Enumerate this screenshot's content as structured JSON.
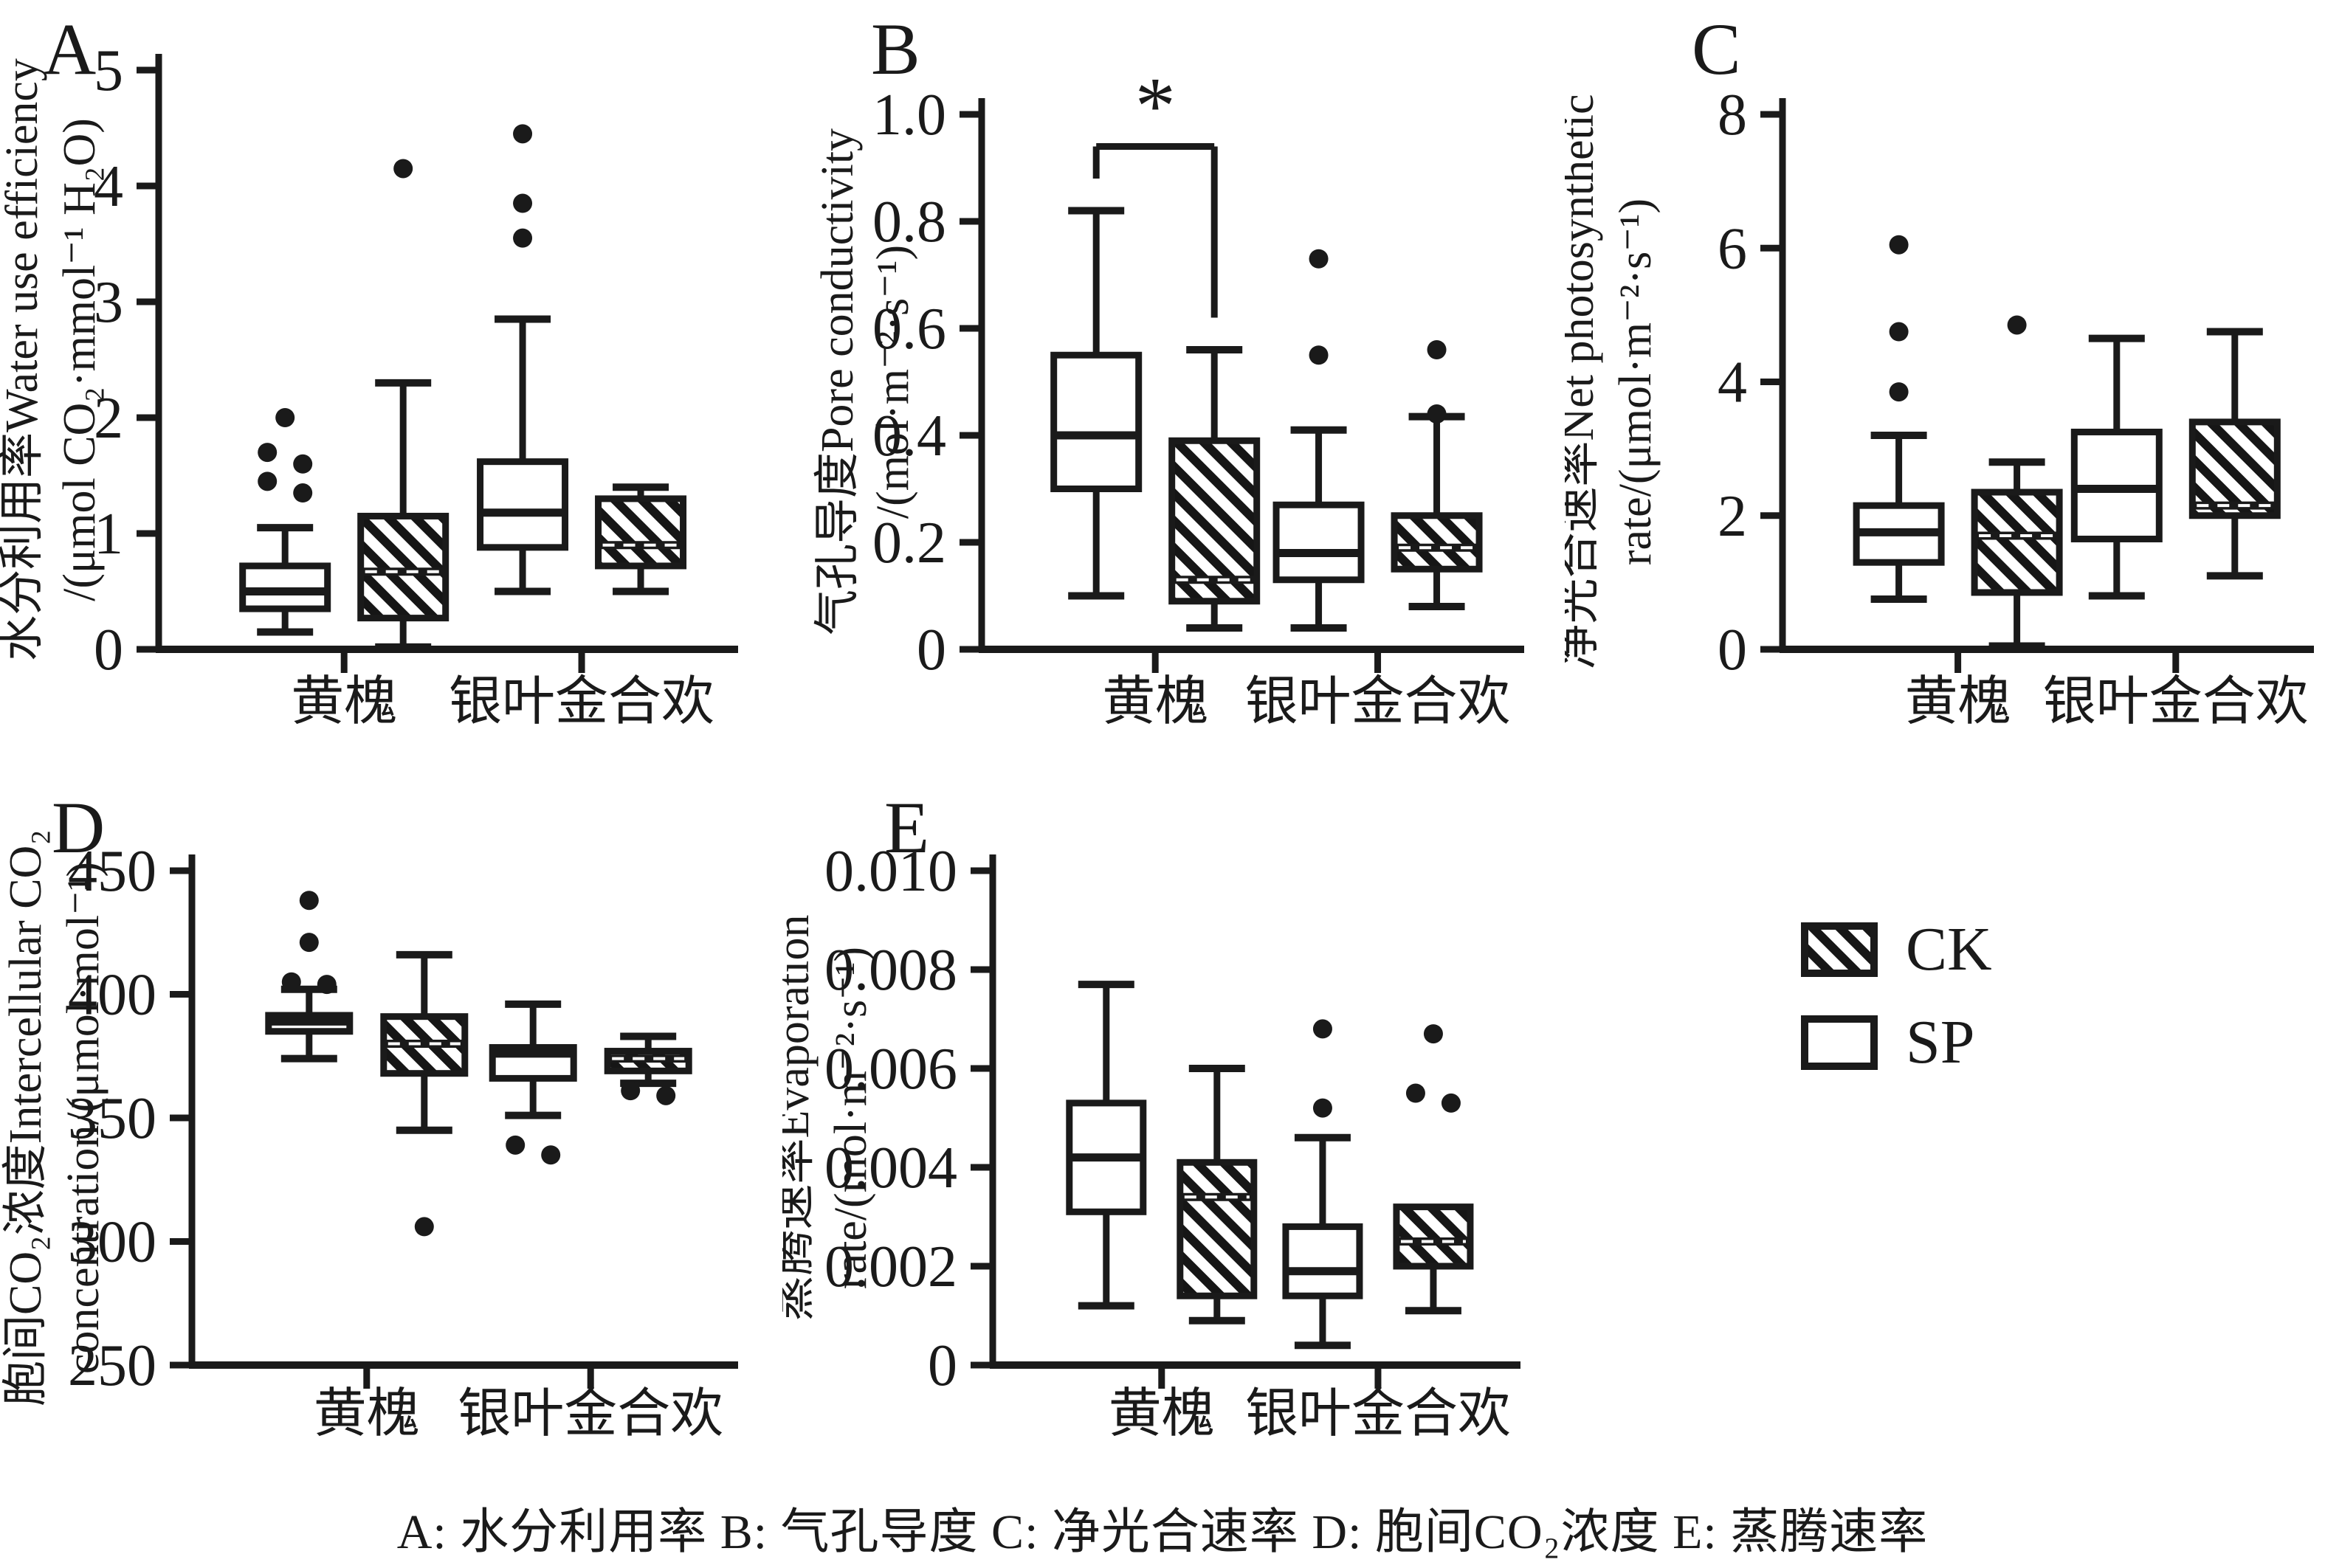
{
  "page": {
    "background": "#ffffff",
    "ink": "#1a1a1a"
  },
  "legend": {
    "items": [
      {
        "label": "CK",
        "swatch": "hatch"
      },
      {
        "label": "SP",
        "swatch": "white"
      }
    ]
  },
  "caption": "A: 水分利用率 B: 气孔导度 C: 净光合速率 D: 胞间CO₂浓度 E: 蒸腾速率",
  "chart_data": [
    {
      "panel": "A",
      "type": "box",
      "ylabel": [
        "水分利用率Water use efficiency",
        "/(μmol CO₂·mmol⁻¹ H₂O)"
      ],
      "ylim": [
        0,
        5
      ],
      "yticks": [
        {
          "v": 0,
          "t": "0"
        },
        {
          "v": 1,
          "t": "1"
        },
        {
          "v": 2,
          "t": "2"
        },
        {
          "v": 3,
          "t": "3"
        },
        {
          "v": 4,
          "t": "4"
        },
        {
          "v": 5,
          "t": "5"
        }
      ],
      "categories": [
        "黄槐",
        "银叶金合欢"
      ],
      "series_order": [
        "SP",
        "CK"
      ],
      "groups": [
        {
          "category": "黄槐",
          "boxes": [
            {
              "series": "SP",
              "style": "open",
              "stats": {
                "whisker_low": 0.15,
                "q1": 0.35,
                "median": 0.5,
                "q3": 0.72,
                "whisker_high": 1.05
              },
              "outliers": [
                1.35,
                1.45,
                1.6,
                1.7,
                2.0
              ]
            },
            {
              "series": "CK",
              "style": "hatched",
              "stats": {
                "whisker_low": 0.02,
                "q1": 0.27,
                "median": 0.67,
                "q3": 1.15,
                "whisker_high": 2.3
              },
              "outliers": [
                4.15
              ]
            }
          ]
        },
        {
          "category": "银叶金合欢",
          "boxes": [
            {
              "series": "SP",
              "style": "open",
              "stats": {
                "whisker_low": 0.5,
                "q1": 0.88,
                "median": 1.18,
                "q3": 1.62,
                "whisker_high": 2.85
              },
              "outliers": [
                3.55,
                3.85,
                4.45
              ]
            },
            {
              "series": "CK",
              "style": "hatched",
              "stats": {
                "whisker_low": 0.5,
                "q1": 0.72,
                "median": 0.9,
                "q3": 1.3,
                "whisker_high": 1.4
              },
              "outliers": []
            }
          ]
        }
      ]
    },
    {
      "panel": "B",
      "type": "box",
      "ylabel": [
        "气孔导度Pore conductivity",
        "/(mol·m⁻²·s⁻¹)"
      ],
      "ylim": [
        0,
        1.0
      ],
      "yticks": [
        {
          "v": 0,
          "t": "0"
        },
        {
          "v": 0.2,
          "t": "0.2"
        },
        {
          "v": 0.4,
          "t": "0.4"
        },
        {
          "v": 0.6,
          "t": "0.6"
        },
        {
          "v": 0.8,
          "t": "0.8"
        },
        {
          "v": 1.0,
          "t": "1.0"
        }
      ],
      "categories": [
        "黄槐",
        "银叶金合欢"
      ],
      "series_order": [
        "SP",
        "CK"
      ],
      "significance": {
        "label": "*",
        "category": "黄槐",
        "between": [
          "SP",
          "CK"
        ],
        "bar_y": 0.94,
        "drop_left_to": 0.88,
        "drop_right_to": 0.62
      },
      "groups": [
        {
          "category": "黄槐",
          "boxes": [
            {
              "series": "SP",
              "style": "open",
              "stats": {
                "whisker_low": 0.1,
                "q1": 0.3,
                "median": 0.4,
                "q3": 0.55,
                "whisker_high": 0.82
              },
              "outliers": []
            },
            {
              "series": "CK",
              "style": "hatched",
              "stats": {
                "whisker_low": 0.04,
                "q1": 0.09,
                "median": 0.13,
                "q3": 0.39,
                "whisker_high": 0.56
              },
              "outliers": []
            }
          ]
        },
        {
          "category": "银叶金合欢",
          "boxes": [
            {
              "series": "SP",
              "style": "open",
              "stats": {
                "whisker_low": 0.04,
                "q1": 0.13,
                "median": 0.18,
                "q3": 0.27,
                "whisker_high": 0.41
              },
              "outliers": [
                0.55,
                0.73
              ]
            },
            {
              "series": "CK",
              "style": "hatched",
              "stats": {
                "whisker_low": 0.08,
                "q1": 0.15,
                "median": 0.19,
                "q3": 0.25,
                "whisker_high": 0.435
              },
              "outliers": [
                0.44,
                0.56
              ]
            }
          ]
        }
      ]
    },
    {
      "panel": "C",
      "type": "box",
      "ylabel": [
        "净光合速率Net photosynthetic",
        "rate/(μmol·m⁻²·s⁻¹)"
      ],
      "ylim": [
        0,
        8
      ],
      "yticks": [
        {
          "v": 0,
          "t": "0"
        },
        {
          "v": 2,
          "t": "2"
        },
        {
          "v": 4,
          "t": "4"
        },
        {
          "v": 6,
          "t": "6"
        },
        {
          "v": 8,
          "t": "8"
        }
      ],
      "categories": [
        "黄槐",
        "银叶金合欢"
      ],
      "series_order": [
        "SP",
        "CK"
      ],
      "groups": [
        {
          "category": "黄槐",
          "boxes": [
            {
              "series": "SP",
              "style": "open",
              "stats": {
                "whisker_low": 0.75,
                "q1": 1.3,
                "median": 1.75,
                "q3": 2.15,
                "whisker_high": 3.2
              },
              "outliers": [
                3.85,
                4.75,
                6.05
              ]
            },
            {
              "series": "CK",
              "style": "hatched",
              "stats": {
                "whisker_low": 0.05,
                "q1": 0.85,
                "median": 1.7,
                "q3": 2.35,
                "whisker_high": 2.8
              },
              "outliers": [
                4.85
              ]
            }
          ]
        },
        {
          "category": "银叶金合欢",
          "boxes": [
            {
              "series": "SP",
              "style": "open",
              "stats": {
                "whisker_low": 0.8,
                "q1": 1.65,
                "median": 2.4,
                "q3": 3.25,
                "whisker_high": 4.65
              },
              "outliers": []
            },
            {
              "series": "CK",
              "style": "hatched",
              "stats": {
                "whisker_low": 1.1,
                "q1": 2.0,
                "median": 2.15,
                "q3": 3.4,
                "whisker_high": 4.75
              },
              "outliers": []
            }
          ]
        }
      ]
    },
    {
      "panel": "D",
      "type": "box",
      "ylabel": [
        "胞间CO₂浓度Intercellular CO₂",
        "concentration/(μmol·mol⁻¹)"
      ],
      "ylim": [
        250,
        450
      ],
      "yticks": [
        {
          "v": 250,
          "t": "250"
        },
        {
          "v": 300,
          "t": "300"
        },
        {
          "v": 350,
          "t": "350"
        },
        {
          "v": 400,
          "t": "400"
        },
        {
          "v": 450,
          "t": "450"
        }
      ],
      "categories": [
        "黄槐",
        "银叶金合欢"
      ],
      "series_order": [
        "SP",
        "CK"
      ],
      "groups": [
        {
          "category": "黄槐",
          "boxes": [
            {
              "series": "SP",
              "style": "open",
              "stats": {
                "whisker_low": 374,
                "q1": 385,
                "median": 389,
                "q3": 391.5,
                "whisker_high": 402
              },
              "outliers": [
                404,
                405,
                421,
                438
              ]
            },
            {
              "series": "CK",
              "style": "hatched",
              "stats": {
                "whisker_low": 345,
                "q1": 368,
                "median": 380,
                "q3": 391,
                "whisker_high": 416
              },
              "outliers": [
                306
              ]
            }
          ]
        },
        {
          "category": "银叶金合欢",
          "boxes": [
            {
              "series": "SP",
              "style": "open",
              "stats": {
                "whisker_low": 351,
                "q1": 366,
                "median": 376,
                "q3": 378.5,
                "whisker_high": 396
              },
              "outliers": [
                335,
                339
              ]
            },
            {
              "series": "CK",
              "style": "hatched",
              "stats": {
                "whisker_low": 364,
                "q1": 369,
                "median": 374,
                "q3": 377,
                "whisker_high": 383
              },
              "outliers": [
                359,
                361
              ]
            }
          ]
        }
      ]
    },
    {
      "panel": "E",
      "type": "box",
      "ylabel": [
        "蒸腾速率Evaporation",
        "rate/(mol·m⁻²·s⁻¹)"
      ],
      "ylim": [
        0,
        0.01
      ],
      "yticks": [
        {
          "v": 0,
          "t": "0"
        },
        {
          "v": 0.002,
          "t": "0.002"
        },
        {
          "v": 0.004,
          "t": "0.004"
        },
        {
          "v": 0.006,
          "t": "0.006"
        },
        {
          "v": 0.008,
          "t": "0.008"
        },
        {
          "v": 0.01,
          "t": "0.010"
        }
      ],
      "categories": [
        "黄槐",
        "银叶金合欢"
      ],
      "series_order": [
        "SP",
        "CK"
      ],
      "groups": [
        {
          "category": "黄槐",
          "boxes": [
            {
              "series": "SP",
              "style": "open",
              "stats": {
                "whisker_low": 0.0012,
                "q1": 0.0031,
                "median": 0.0042,
                "q3": 0.0053,
                "whisker_high": 0.0077
              },
              "outliers": []
            },
            {
              "series": "CK",
              "style": "hatched",
              "stats": {
                "whisker_low": 0.0009,
                "q1": 0.0014,
                "median": 0.0034,
                "q3": 0.0041,
                "whisker_high": 0.006
              },
              "outliers": []
            }
          ]
        },
        {
          "category": "银叶金合欢",
          "boxes": [
            {
              "series": "SP",
              "style": "open",
              "stats": {
                "whisker_low": 0.0004,
                "q1": 0.0014,
                "median": 0.0019,
                "q3": 0.0028,
                "whisker_high": 0.0046
              },
              "outliers": [
                0.0052,
                0.0068
              ]
            },
            {
              "series": "CK",
              "style": "hatched",
              "stats": {
                "whisker_low": 0.0011,
                "q1": 0.002,
                "median": 0.0025,
                "q3": 0.0032,
                "whisker_high": 0.0032
              },
              "outliers": [
                0.0053,
                0.0055,
                0.0067
              ]
            }
          ]
        }
      ]
    }
  ]
}
